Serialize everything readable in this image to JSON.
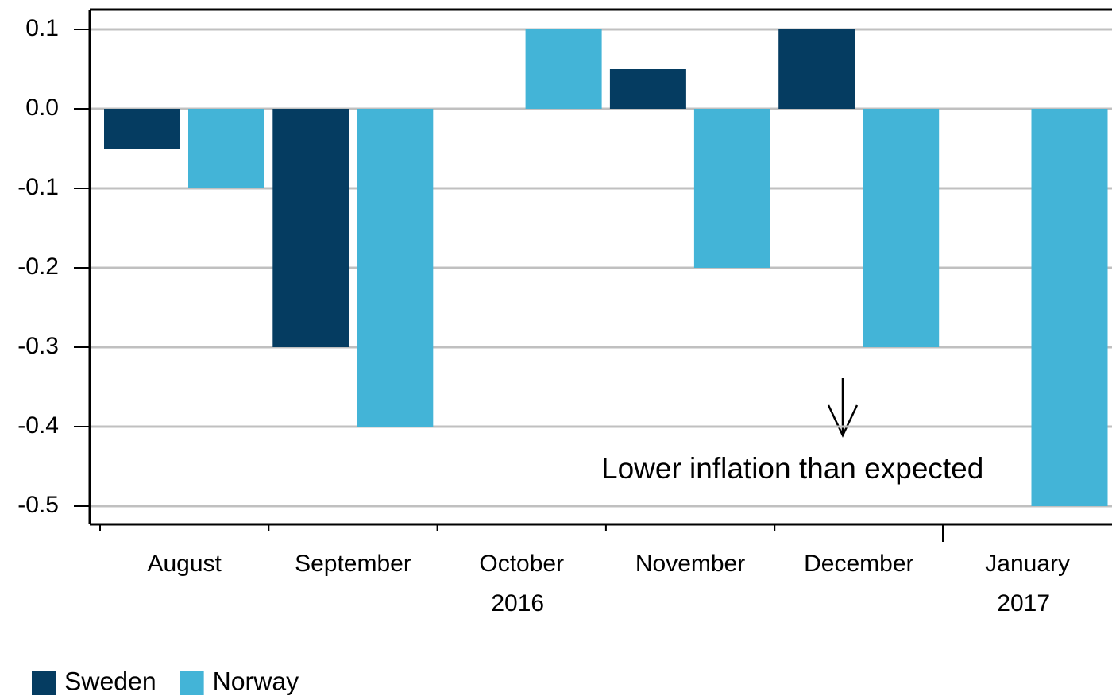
{
  "chart_data": {
    "type": "bar",
    "categories": [
      "August",
      "September",
      "October",
      "November",
      "December",
      "January"
    ],
    "year_labels": [
      null,
      null,
      "2016",
      null,
      null,
      "2017"
    ],
    "series": [
      {
        "name": "Sweden",
        "color": "#053c61",
        "values": [
          -0.05,
          -0.3,
          0,
          0.05,
          0.1,
          0
        ]
      },
      {
        "name": "Norway",
        "color": "#43b4d7",
        "values": [
          -0.1,
          -0.4,
          0.1,
          -0.2,
          -0.3,
          -0.5
        ]
      }
    ],
    "ylim": [
      -0.523,
      0.125
    ],
    "yticks": [
      0.1,
      {
        "value": 0,
        "label": "0.0"
      },
      -0.1,
      -0.2,
      -0.3,
      -0.4,
      -0.5
    ],
    "grid": true,
    "annotation": "Lower inflation than expected",
    "legend": "bottom-left"
  }
}
